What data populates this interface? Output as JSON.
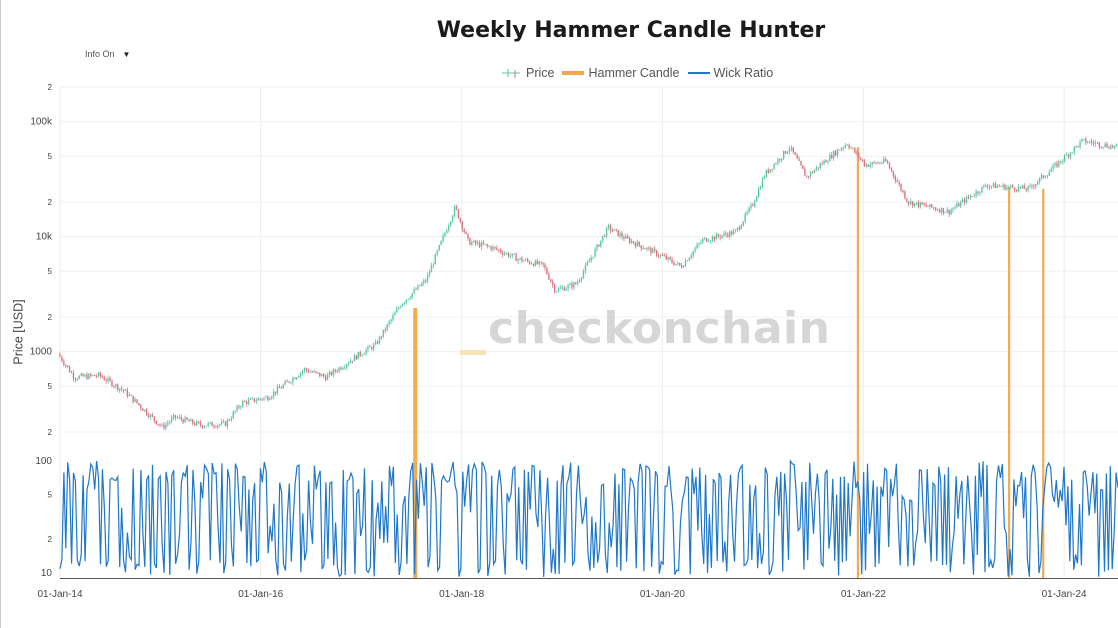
{
  "title": "Weekly Hammer Candle Hunter",
  "info_toggle": {
    "label": "Info On",
    "caret": "▼"
  },
  "legend": [
    {
      "label": "Price",
      "color": "#d9747f",
      "color2": "#59c9a5"
    },
    {
      "label": "Hammer Candle",
      "color": "#f2a74b"
    },
    {
      "label": "Wick Ratio",
      "color": "#1f77c9"
    }
  ],
  "watermark": "checkonchain",
  "chart_data": {
    "type": "line",
    "title": "Weekly Hammer Candle Hunter",
    "ylabel": "Price [USD]",
    "xlabel": "",
    "price_axis": {
      "scale": "log",
      "range": [
        150,
        200000
      ],
      "tick_labels": [
        [
          "2",
          200000
        ],
        [
          "100k",
          100000
        ],
        [
          "5",
          50000
        ],
        [
          "2",
          20000
        ],
        [
          "10k",
          10000
        ],
        [
          "5",
          5000
        ],
        [
          "2",
          2000
        ],
        [
          "1000",
          1000
        ],
        [
          "5",
          500
        ],
        [
          "2",
          200
        ]
      ]
    },
    "ratio_axis": {
      "scale": "log",
      "range": [
        8,
        100
      ],
      "tick_labels": [
        [
          "100",
          100
        ],
        [
          "5",
          50
        ],
        [
          "2",
          20
        ],
        [
          "10",
          10
        ]
      ]
    },
    "x_ticks": [
      [
        "01-Jan-14",
        "2014-01-01"
      ],
      [
        "01-Jan-16",
        "2016-01-01"
      ],
      [
        "01-Jan-18",
        "2018-01-01"
      ],
      [
        "01-Jan-20",
        "2020-01-01"
      ],
      [
        "01-Jan-22",
        "2022-01-01"
      ],
      [
        "01-Jan-24",
        "2024-01-01"
      ]
    ],
    "x_range": [
      "2014-01-01",
      "2024-07-15"
    ],
    "series": [
      {
        "name": "Price",
        "type": "candlestick",
        "anchors": [
          [
            "2014-01-01",
            950
          ],
          [
            "2014-03-01",
            600
          ],
          [
            "2014-06-01",
            620
          ],
          [
            "2014-09-01",
            450
          ],
          [
            "2015-01-15",
            220
          ],
          [
            "2015-03-01",
            270
          ],
          [
            "2015-06-01",
            230
          ],
          [
            "2015-09-01",
            235
          ],
          [
            "2015-11-01",
            360
          ],
          [
            "2016-02-01",
            400
          ],
          [
            "2016-06-15",
            700
          ],
          [
            "2016-09-01",
            600
          ],
          [
            "2017-01-01",
            950
          ],
          [
            "2017-03-01",
            1150
          ],
          [
            "2017-06-01",
            2600
          ],
          [
            "2017-09-01",
            4200
          ],
          [
            "2017-12-15",
            18000
          ],
          [
            "2018-02-01",
            9000
          ],
          [
            "2018-05-01",
            8000
          ],
          [
            "2018-08-01",
            6400
          ],
          [
            "2018-11-01",
            5600
          ],
          [
            "2018-12-15",
            3400
          ],
          [
            "2019-03-01",
            3900
          ],
          [
            "2019-06-25",
            12000
          ],
          [
            "2019-09-01",
            9500
          ],
          [
            "2019-12-15",
            7200
          ],
          [
            "2020-03-15",
            5500
          ],
          [
            "2020-06-01",
            9300
          ],
          [
            "2020-10-01",
            11000
          ],
          [
            "2020-12-01",
            19000
          ],
          [
            "2021-01-15",
            35000
          ],
          [
            "2021-04-15",
            60000
          ],
          [
            "2021-06-15",
            33000
          ],
          [
            "2021-09-01",
            48000
          ],
          [
            "2021-11-10",
            65000
          ],
          [
            "2022-01-15",
            42000
          ],
          [
            "2022-04-01",
            45000
          ],
          [
            "2022-06-20",
            20000
          ],
          [
            "2022-11-15",
            16500
          ],
          [
            "2023-01-15",
            21000
          ],
          [
            "2023-04-01",
            28000
          ],
          [
            "2023-09-01",
            26000
          ],
          [
            "2023-11-15",
            37000
          ],
          [
            "2024-03-15",
            68000
          ],
          [
            "2024-07-15",
            60000
          ]
        ]
      },
      {
        "name": "Hammer Candle",
        "type": "bar",
        "dates": [
          "2017-07-16",
          "2021-12-12",
          "2023-06-15",
          "2023-10-17"
        ],
        "tops": [
          2400,
          60000,
          27000,
          26000
        ]
      },
      {
        "name": "Wick Ratio",
        "type": "line",
        "description_points": 550,
        "range": [
          8,
          100
        ]
      }
    ]
  }
}
